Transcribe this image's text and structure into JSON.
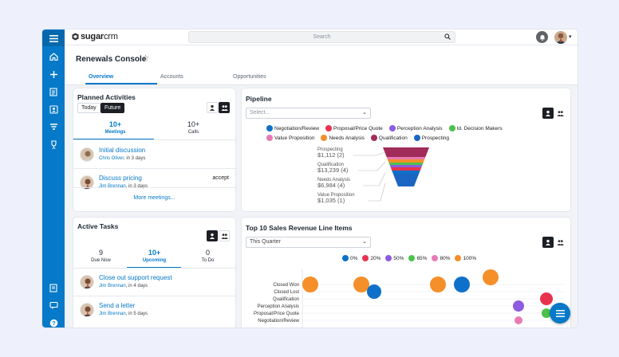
{
  "app": {
    "logo_text_bold": "sugar",
    "logo_text_light": "crm"
  },
  "search": {
    "placeholder": "Search"
  },
  "page": {
    "title": "Renewals Console"
  },
  "tabs": [
    {
      "label": "Overview"
    },
    {
      "label": "Accounts"
    },
    {
      "label": "Opportunities"
    }
  ],
  "planned": {
    "title": "Planned Activities",
    "seg_today": "Today",
    "seg_future": "Future",
    "stats": [
      {
        "n": "10+",
        "l": "Meetings"
      },
      {
        "n": "10+",
        "l": "Calls"
      }
    ],
    "items": [
      {
        "title": "Initial discussion",
        "person": "Chris Oliver",
        "when": ", in 3 days"
      },
      {
        "title": "Discuss pricing",
        "person": "Jim Brennan",
        "when": ", in 3 days",
        "action": "accept"
      }
    ],
    "more": "More meetings..."
  },
  "tasks": {
    "title": "Active Tasks",
    "stats": [
      {
        "n": "9",
        "l": "Due Now"
      },
      {
        "n": "10+",
        "l": "Upcoming"
      },
      {
        "n": "0",
        "l": "To Do"
      }
    ],
    "items": [
      {
        "title": "Close out support request",
        "person": "Jim Brennan",
        "when": ", in 4 days"
      },
      {
        "title": "Send a letter",
        "person": "Jim Brennan",
        "when": ", in 5 days"
      }
    ]
  },
  "pipeline": {
    "title": "Pipeline",
    "select_placeholder": "Select...",
    "legend": [
      {
        "name": "Negotiation/Review",
        "color": "#0e70c8"
      },
      {
        "name": "Proposal/Price Quote",
        "color": "#e8334f"
      },
      {
        "name": "Perception Analysis",
        "color": "#8d5ce0"
      },
      {
        "name": "Id. Decision Makers",
        "color": "#4cc24a"
      },
      {
        "name": "Value Proposition",
        "color": "#e87ab5"
      },
      {
        "name": "Needs Analysis",
        "color": "#f58f2a"
      },
      {
        "name": "Qualification",
        "color": "#a12c5a"
      },
      {
        "name": "Prospecting",
        "color": "#1a66c2"
      }
    ],
    "labels": [
      {
        "stage": "Prospecting",
        "amount": "$1,112 (2)"
      },
      {
        "stage": "Qualification",
        "amount": "$13,239 (4)"
      },
      {
        "stage": "Needs Analysis",
        "amount": "$6,984 (4)"
      },
      {
        "stage": "Value Proposition",
        "amount": "$1,035 (1)"
      }
    ]
  },
  "revenue": {
    "title": "Top 10 Sales Revenue Line Items",
    "select_value": "This Quarter",
    "legend": [
      {
        "name": "0%",
        "color": "#0e70c8"
      },
      {
        "name": "20%",
        "color": "#e8334f"
      },
      {
        "name": "50%",
        "color": "#8d5ce0"
      },
      {
        "name": "65%",
        "color": "#4cc24a"
      },
      {
        "name": "80%",
        "color": "#e87ab5"
      },
      {
        "name": "100%",
        "color": "#f58f2a"
      }
    ],
    "rows": [
      "Closed Won",
      "Closed Lost",
      "Qualification",
      "Perception Analysis",
      "Proposal/Price Quote",
      "Negotiation/Review"
    ]
  }
}
